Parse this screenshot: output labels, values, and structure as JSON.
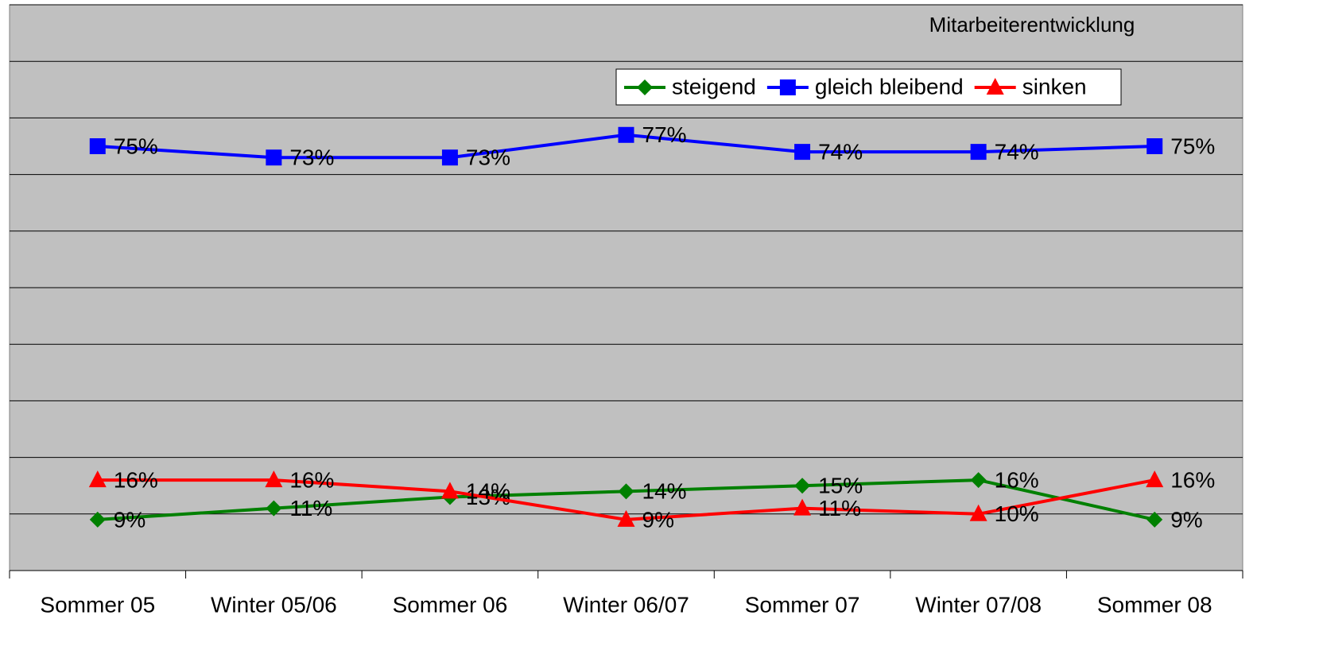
{
  "chart_data": {
    "type": "line",
    "title": "Mitarbeiterentwicklung",
    "categories": [
      "Sommer 05",
      "Winter 05/06",
      "Sommer 06",
      "Winter 06/07",
      "Sommer 07",
      "Winter 07/08",
      "Sommer 08"
    ],
    "series": [
      {
        "name": "steigend",
        "color": "#008000",
        "marker": "diamond",
        "values": [
          9,
          11,
          13,
          14,
          15,
          16,
          9
        ],
        "value_labels": [
          "9%",
          "11%",
          "13%",
          "14%",
          "15%",
          "16%",
          "9%"
        ]
      },
      {
        "name": "gleich bleibend",
        "color": "#0000ff",
        "marker": "square",
        "values": [
          75,
          73,
          73,
          77,
          74,
          74,
          75
        ],
        "value_labels": [
          "75%",
          "73%",
          "73%",
          "77%",
          "74%",
          "74%",
          "75%"
        ]
      },
      {
        "name": "sinken",
        "color": "#ff0000",
        "marker": "triangle",
        "values": [
          16,
          16,
          14,
          9,
          11,
          10,
          16
        ],
        "value_labels": [
          "16%",
          "16%",
          "14%",
          "9%",
          "11%",
          "10%",
          "16%"
        ]
      }
    ],
    "ylim": [
      0,
      100
    ],
    "yticks": [
      0,
      10,
      20,
      30,
      40,
      50,
      60,
      70,
      80,
      90,
      100
    ],
    "grid": true,
    "legend": "top"
  }
}
